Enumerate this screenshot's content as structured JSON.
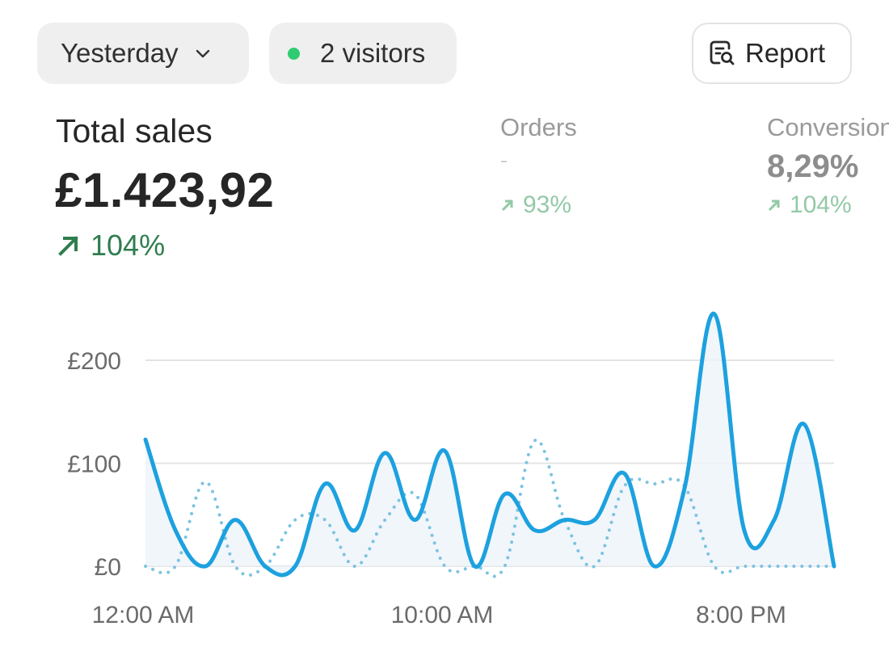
{
  "filters": {
    "period_label": "Yesterday",
    "visitors_label": "2 visitors",
    "live_dot_color": "#2ecc71"
  },
  "report_button": {
    "label": "Report",
    "icon": "report-search-icon"
  },
  "total_sales": {
    "title": "Total sales",
    "value": "£1.423,92",
    "trend": "104%",
    "trend_icon": "arrow-up-right-icon",
    "trend_color": "#2f7d4f"
  },
  "orders": {
    "title": "Orders",
    "value": "-",
    "trend": "93%"
  },
  "conversion": {
    "title": "Conversion",
    "value": "8,29%",
    "trend": "104%"
  },
  "chart_data": {
    "type": "line",
    "y_ticks": [
      "£200",
      "£100",
      "£0"
    ],
    "x_ticks": [
      "12:00 AM",
      "10:00 AM",
      "8:00 PM"
    ],
    "ylim": [
      0,
      200
    ],
    "grid": true,
    "colors": {
      "current": "#1da1df",
      "comparison": "#7cc3e0",
      "grid": "#e4e4e4"
    },
    "series": [
      {
        "style": "solid",
        "x": [
          0,
          1,
          2,
          3,
          4,
          5,
          6,
          7,
          8,
          9,
          10,
          11,
          12,
          13,
          14,
          15,
          16,
          17,
          18,
          19,
          20,
          21,
          22,
          23
        ],
        "values": [
          123,
          35,
          0,
          45,
          0,
          0,
          80,
          35,
          110,
          45,
          112,
          0,
          70,
          35,
          45,
          45,
          90,
          0,
          75,
          245,
          35,
          45,
          138,
          0
        ]
      },
      {
        "style": "dotted",
        "x": [
          0,
          1,
          2,
          3,
          4,
          5,
          6,
          7,
          8,
          9,
          10,
          11,
          12,
          13,
          14,
          15,
          16,
          17,
          18,
          19,
          20,
          21,
          22,
          23
        ],
        "values": [
          0,
          0,
          82,
          0,
          0,
          45,
          45,
          0,
          45,
          70,
          0,
          0,
          0,
          122,
          45,
          0,
          78,
          80,
          78,
          0,
          0,
          0,
          0,
          0
        ]
      }
    ]
  }
}
